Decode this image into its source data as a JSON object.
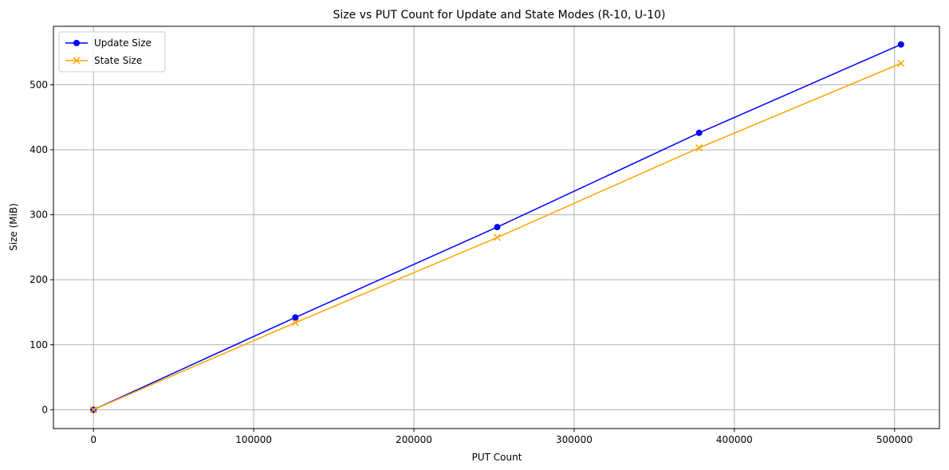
{
  "chart_data": {
    "type": "line",
    "title": "Size vs PUT Count for Update and State Modes (R-10, U-10)",
    "xlabel": "PUT Count",
    "ylabel": "Size (MiB)",
    "xlim": [
      -25000,
      528000
    ],
    "ylim": [
      -29,
      590
    ],
    "xticks": [
      0,
      100000,
      200000,
      300000,
      400000,
      500000
    ],
    "xtick_labels": [
      "0",
      "100000",
      "200000",
      "300000",
      "400000",
      "500000"
    ],
    "yticks": [
      0,
      100,
      200,
      300,
      400,
      500
    ],
    "ytick_labels": [
      "0",
      "100",
      "200",
      "300",
      "400",
      "500"
    ],
    "grid": true,
    "legend_position": "upper-left",
    "series": [
      {
        "name": "Update Size",
        "color": "#0000ff",
        "marker": "circle",
        "x": [
          0,
          126000,
          252000,
          378000,
          504000
        ],
        "y": [
          0,
          142,
          281,
          426,
          562
        ]
      },
      {
        "name": "State Size",
        "color": "#ffa500",
        "marker": "x",
        "x": [
          0,
          126000,
          252000,
          378000,
          504000
        ],
        "y": [
          0,
          134,
          265,
          403,
          533
        ]
      }
    ]
  }
}
